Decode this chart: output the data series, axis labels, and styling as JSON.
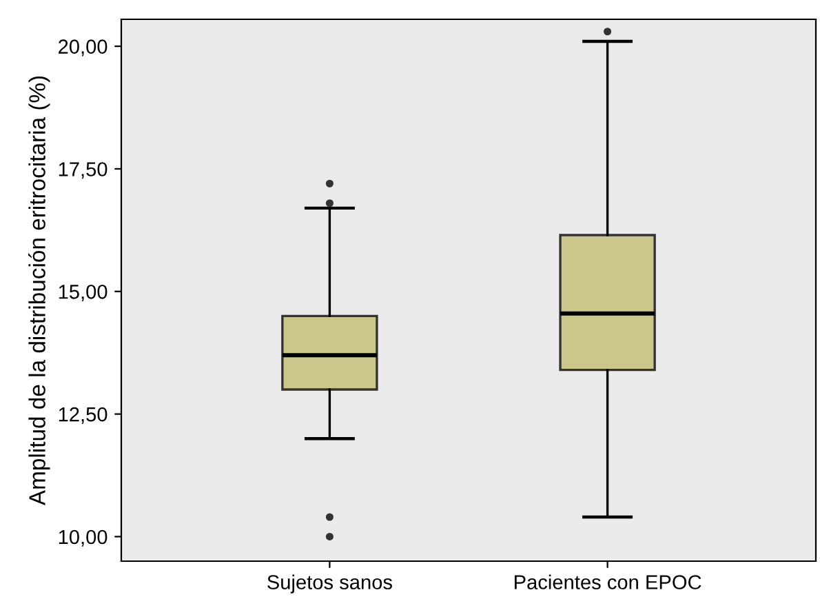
{
  "chart_data": {
    "type": "box",
    "ylabel": "Amplitud de la distribución eritrocitaria (%)",
    "categories": [
      "Sujetos sanos",
      "Pacientes con EPOC"
    ],
    "boxes": [
      {
        "low": 12.0,
        "q1": 13.0,
        "median": 13.7,
        "q3": 14.5,
        "high": 16.7,
        "outliers": [
          16.8,
          17.2,
          10.4,
          10.0
        ]
      },
      {
        "low": 10.4,
        "q1": 13.4,
        "median": 14.55,
        "q3": 16.15,
        "high": 20.1,
        "outliers": [
          20.3
        ]
      }
    ],
    "color": "#cbc78a",
    "ylim": [
      9.5,
      20.55
    ],
    "yticks": [
      {
        "value": 10,
        "label": "10,00"
      },
      {
        "value": 12.5,
        "label": "12,50"
      },
      {
        "value": 15,
        "label": "15,00"
      },
      {
        "value": 17.5,
        "label": "17,50"
      },
      {
        "value": 20,
        "label": "20,00"
      }
    ],
    "grid": false,
    "legend": false
  }
}
